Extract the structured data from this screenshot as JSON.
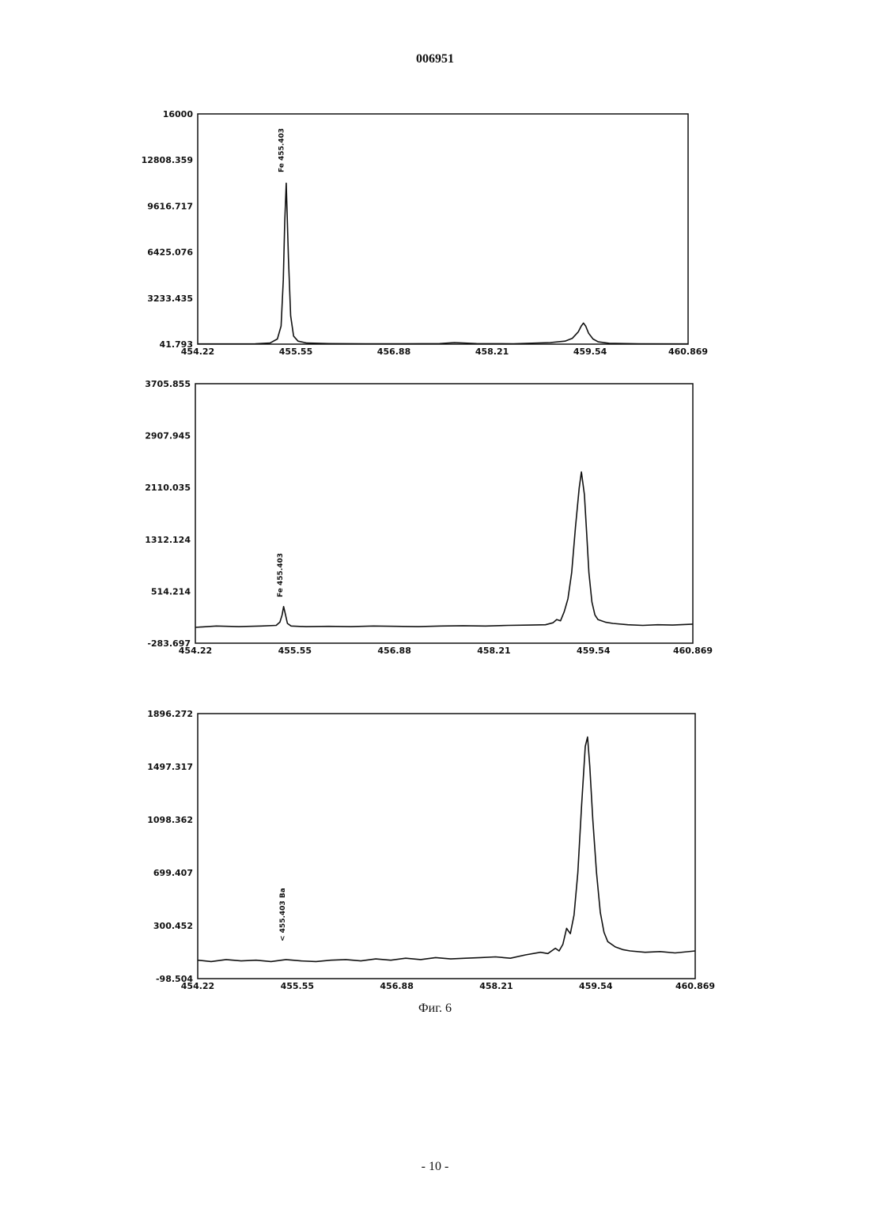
{
  "page": {
    "doc_number": "006951",
    "figure_caption": "Фиг. 6",
    "page_number": "- 10 -"
  },
  "chart_data": [
    {
      "type": "line",
      "title": "",
      "xlabel": "",
      "ylabel": "",
      "xlim": [
        454.22,
        460.869
      ],
      "ylim": [
        41.793,
        16000
      ],
      "x_ticks": [
        "454.22",
        "455.55",
        "456.88",
        "458.21",
        "459.54",
        "460.869"
      ],
      "y_ticks": [
        "16000",
        "12808.359",
        "9616.717",
        "6425.076",
        "3233.435",
        "41.793"
      ],
      "grid": false,
      "peak_label": "Fe 455.403",
      "series": [
        {
          "x": [
            454.22,
            454.6,
            455.0,
            455.2,
            455.3,
            455.35,
            455.38,
            455.4,
            455.42,
            455.45,
            455.48,
            455.52,
            455.58,
            455.7,
            456.0,
            456.5,
            457.0,
            457.5,
            457.7,
            458.0,
            458.5,
            459.0,
            459.2,
            459.3,
            459.38,
            459.42,
            459.45,
            459.48,
            459.52,
            459.58,
            459.65,
            459.8,
            460.2,
            460.869
          ],
          "y": [
            60,
            60,
            70,
            120,
            400,
            1300,
            4500,
            8500,
            11200,
            6000,
            2000,
            600,
            250,
            120,
            80,
            70,
            70,
            80,
            150,
            80,
            70,
            150,
            250,
            450,
            900,
            1300,
            1500,
            1300,
            800,
            400,
            200,
            100,
            70,
            60
          ]
        }
      ]
    },
    {
      "type": "line",
      "title": "",
      "xlabel": "",
      "ylabel": "",
      "xlim": [
        454.22,
        460.869
      ],
      "ylim": [
        -283.697,
        3705.855
      ],
      "x_ticks": [
        "454.22",
        "455.55",
        "456.88",
        "458.21",
        "459.54",
        "460.869"
      ],
      "y_ticks": [
        "3705.855",
        "2907.945",
        "2110.035",
        "1312.124",
        "514.214",
        "-283.697"
      ],
      "grid": false,
      "peak_label": "Fe 455.403",
      "series": [
        {
          "x": [
            454.22,
            454.5,
            454.8,
            455.1,
            455.3,
            455.35,
            455.38,
            455.4,
            455.42,
            455.45,
            455.5,
            455.7,
            456.0,
            456.3,
            456.6,
            456.9,
            457.2,
            457.5,
            457.8,
            458.1,
            458.4,
            458.7,
            458.9,
            459.0,
            459.05,
            459.1,
            459.15,
            459.2,
            459.25,
            459.3,
            459.35,
            459.38,
            459.42,
            459.45,
            459.48,
            459.52,
            459.56,
            459.6,
            459.7,
            459.8,
            460.0,
            460.2,
            460.4,
            460.6,
            460.869
          ],
          "y": [
            -40,
            -20,
            -30,
            -20,
            -10,
            40,
            150,
            280,
            180,
            20,
            -20,
            -30,
            -25,
            -30,
            -20,
            -25,
            -30,
            -20,
            -15,
            -20,
            -10,
            -5,
            0,
            30,
            80,
            60,
            200,
            400,
            800,
            1500,
            2100,
            2350,
            2000,
            1400,
            800,
            350,
            150,
            80,
            40,
            20,
            0,
            -10,
            0,
            -5,
            10
          ]
        }
      ]
    },
    {
      "type": "line",
      "title": "",
      "xlabel": "",
      "ylabel": "",
      "xlim": [
        454.22,
        460.869
      ],
      "ylim": [
        -98.504,
        1896.272
      ],
      "x_ticks": [
        "454.22",
        "455.55",
        "456.88",
        "458.21",
        "459.54",
        "460.869"
      ],
      "y_ticks": [
        "1896.272",
        "1497.317",
        "1098.362",
        "699.407",
        "300.452",
        "-98.504"
      ],
      "grid": false,
      "peak_label": "< 455.403 Ba",
      "series": [
        {
          "x": [
            454.22,
            454.4,
            454.6,
            454.8,
            455.0,
            455.2,
            455.4,
            455.6,
            455.8,
            456.0,
            456.2,
            456.4,
            456.6,
            456.8,
            457.0,
            457.2,
            457.4,
            457.6,
            457.8,
            458.0,
            458.2,
            458.4,
            458.6,
            458.8,
            458.9,
            459.0,
            459.05,
            459.1,
            459.15,
            459.2,
            459.25,
            459.3,
            459.35,
            459.4,
            459.43,
            459.46,
            459.5,
            459.55,
            459.6,
            459.65,
            459.7,
            459.8,
            459.9,
            460.0,
            460.2,
            460.4,
            460.6,
            460.869
          ],
          "y": [
            40,
            30,
            45,
            35,
            40,
            30,
            45,
            35,
            30,
            40,
            45,
            35,
            50,
            40,
            55,
            45,
            60,
            50,
            55,
            60,
            65,
            55,
            80,
            100,
            90,
            130,
            110,
            160,
            280,
            240,
            380,
            700,
            1200,
            1650,
            1720,
            1500,
            1100,
            700,
            400,
            250,
            180,
            140,
            120,
            110,
            100,
            105,
            95,
            110
          ]
        }
      ]
    }
  ]
}
